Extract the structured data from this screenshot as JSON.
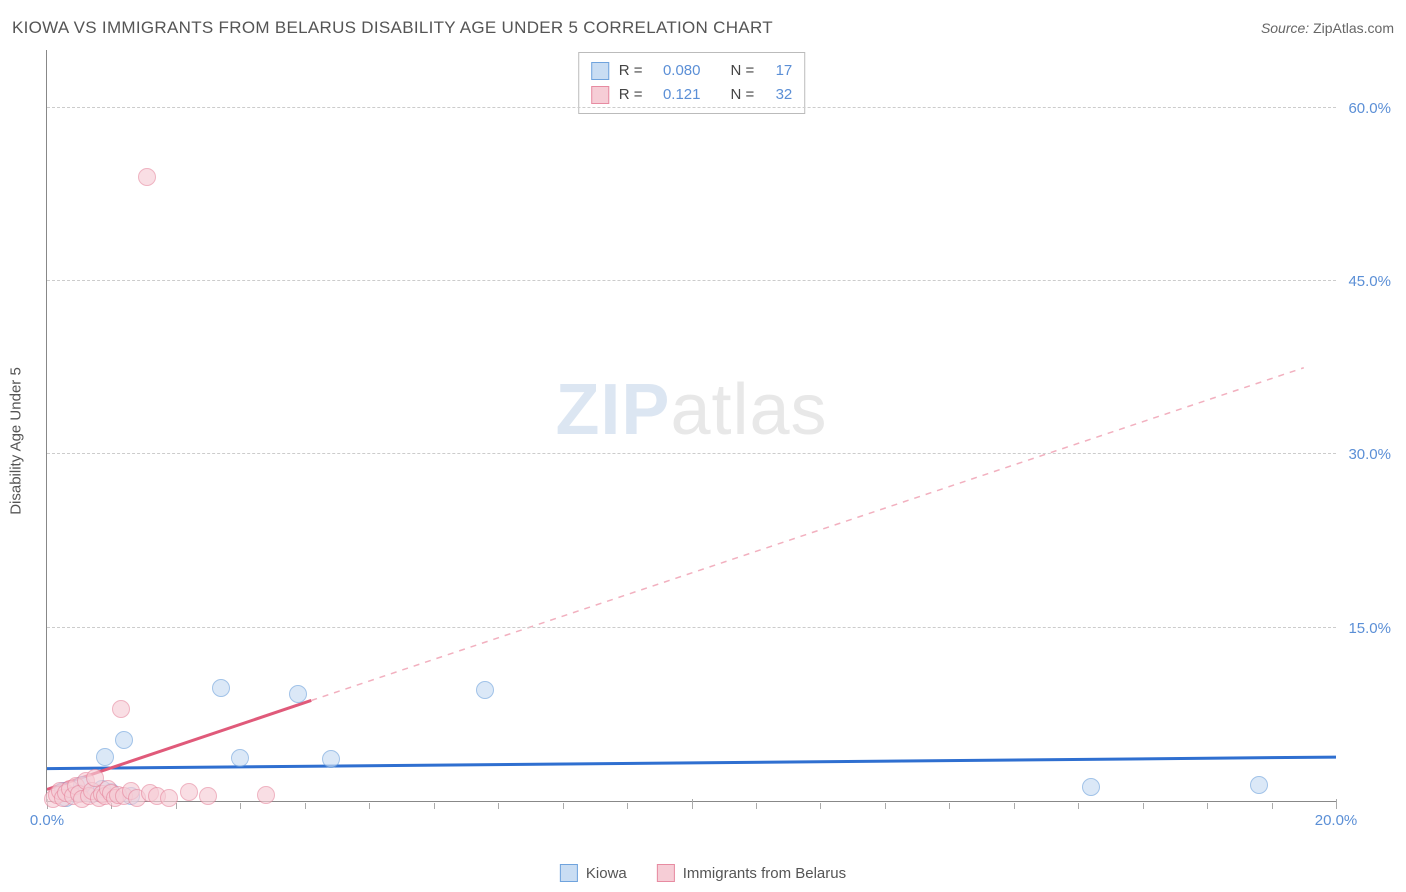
{
  "title": "KIOWA VS IMMIGRANTS FROM BELARUS DISABILITY AGE UNDER 5 CORRELATION CHART",
  "source_prefix": "Source: ",
  "source_name": "ZipAtlas.com",
  "watermark_bold": "ZIP",
  "watermark_light": "atlas",
  "yaxis_title": "Disability Age Under 5",
  "chart": {
    "type": "scatter",
    "xlim": [
      0,
      20
    ],
    "ylim": [
      0,
      65
    ],
    "background_color": "#ffffff",
    "grid_color": "#cccccc",
    "axis_color": "#888888",
    "xticks_major": [
      0,
      10,
      20
    ],
    "xticks_minor": [
      1,
      2,
      3,
      4,
      5,
      6,
      7,
      8,
      9,
      11,
      12,
      13,
      14,
      15,
      16,
      17,
      18,
      19
    ],
    "xtick_labels": [
      {
        "x": 0,
        "label": "0.0%"
      },
      {
        "x": 20,
        "label": "20.0%"
      }
    ],
    "ytick_labels": [
      {
        "y": 15,
        "label": "15.0%"
      },
      {
        "y": 30,
        "label": "30.0%"
      },
      {
        "y": 45,
        "label": "45.0%"
      },
      {
        "y": 60,
        "label": "60.0%"
      }
    ],
    "gridlines_y": [
      0,
      15,
      30,
      45,
      60
    ],
    "series": [
      {
        "key": "kiowa",
        "name": "Kiowa",
        "fill": "#c9ddf3",
        "stroke": "#6fa3dd",
        "marker_radius": 9,
        "fill_opacity": 0.65,
        "trend": {
          "x1": 0,
          "y1": 2.8,
          "x2": 20,
          "y2": 3.8,
          "color": "#2f6fd0",
          "width": 3,
          "dash": "none"
        },
        "R": "0.080",
        "N": "17",
        "points": [
          {
            "x": 0.3,
            "y": 0.3
          },
          {
            "x": 0.5,
            "y": 0.7
          },
          {
            "x": 0.7,
            "y": 0.6
          },
          {
            "x": 0.9,
            "y": 3.8
          },
          {
            "x": 1.0,
            "y": 0.8
          },
          {
            "x": 1.2,
            "y": 5.3
          },
          {
            "x": 1.3,
            "y": 0.4
          },
          {
            "x": 2.7,
            "y": 9.8
          },
          {
            "x": 3.0,
            "y": 3.7
          },
          {
            "x": 3.9,
            "y": 9.3
          },
          {
            "x": 4.4,
            "y": 3.6
          },
          {
            "x": 6.8,
            "y": 9.6
          },
          {
            "x": 16.2,
            "y": 1.2
          },
          {
            "x": 18.8,
            "y": 1.4
          },
          {
            "x": 0.25,
            "y": 0.9
          },
          {
            "x": 0.55,
            "y": 1.4
          },
          {
            "x": 0.85,
            "y": 1.0
          }
        ]
      },
      {
        "key": "belarus",
        "name": "Immigrants from Belarus",
        "fill": "#f6cdd6",
        "stroke": "#e78ba1",
        "marker_radius": 9,
        "fill_opacity": 0.65,
        "trend_solid": {
          "x1": 0,
          "y1": 1.0,
          "x2": 4.1,
          "y2": 8.7,
          "color": "#e05a7a",
          "width": 3
        },
        "trend_dash": {
          "x1": 4.1,
          "y1": 8.7,
          "x2": 19.5,
          "y2": 37.5,
          "color": "#f2b0bf",
          "width": 1.5
        },
        "R": "0.121",
        "N": "32",
        "points": [
          {
            "x": 0.1,
            "y": 0.2
          },
          {
            "x": 0.15,
            "y": 0.5
          },
          {
            "x": 0.2,
            "y": 0.9
          },
          {
            "x": 0.25,
            "y": 0.3
          },
          {
            "x": 0.3,
            "y": 0.7
          },
          {
            "x": 0.35,
            "y": 1.0
          },
          {
            "x": 0.4,
            "y": 0.4
          },
          {
            "x": 0.45,
            "y": 1.3
          },
          {
            "x": 0.5,
            "y": 0.6
          },
          {
            "x": 0.55,
            "y": 0.2
          },
          {
            "x": 0.6,
            "y": 1.7
          },
          {
            "x": 0.65,
            "y": 0.4
          },
          {
            "x": 0.7,
            "y": 0.9
          },
          {
            "x": 0.75,
            "y": 2.0
          },
          {
            "x": 0.8,
            "y": 0.3
          },
          {
            "x": 0.85,
            "y": 0.6
          },
          {
            "x": 0.9,
            "y": 0.4
          },
          {
            "x": 0.95,
            "y": 1.0
          },
          {
            "x": 1.0,
            "y": 0.7
          },
          {
            "x": 1.05,
            "y": 0.3
          },
          {
            "x": 1.1,
            "y": 0.5
          },
          {
            "x": 1.15,
            "y": 8.0
          },
          {
            "x": 1.2,
            "y": 0.4
          },
          {
            "x": 1.3,
            "y": 0.9
          },
          {
            "x": 1.4,
            "y": 0.3
          },
          {
            "x": 1.6,
            "y": 0.7
          },
          {
            "x": 1.7,
            "y": 0.4
          },
          {
            "x": 1.9,
            "y": 0.3
          },
          {
            "x": 2.2,
            "y": 0.8
          },
          {
            "x": 2.5,
            "y": 0.4
          },
          {
            "x": 3.4,
            "y": 0.5
          },
          {
            "x": 1.55,
            "y": 54.0
          }
        ]
      }
    ]
  },
  "legend_top": {
    "R_label": "R =",
    "N_label": "N ="
  },
  "legend_bottom": [
    {
      "series": "kiowa"
    },
    {
      "series": "belarus"
    }
  ]
}
